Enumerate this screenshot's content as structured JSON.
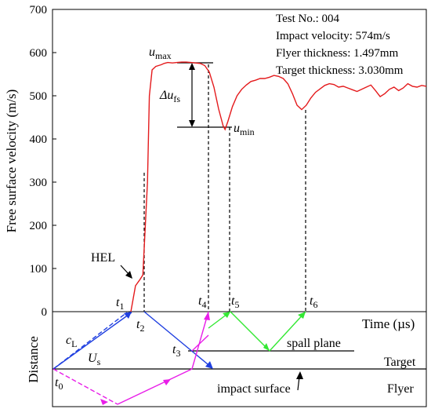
{
  "chart_data": {
    "type": "line",
    "ylabel": "Free surface velocity (m/s)",
    "xlabel": "Time (µs)",
    "ylim": [
      0,
      700
    ],
    "yticks": [
      0,
      100,
      200,
      300,
      400,
      500,
      600,
      700
    ],
    "grid": false,
    "info": [
      "Test No.: 004",
      "Impact velocity: 574m/s",
      "Flyer thickness: 1.497mm",
      "Target thickness: 3.030mm"
    ],
    "series": [
      {
        "color": "#e41a1c",
        "x": [
          0.0,
          0.05,
          0.1,
          0.13,
          0.18,
          0.2,
          0.23,
          0.27,
          0.3,
          0.33,
          0.36,
          0.4,
          0.45,
          0.5,
          0.55,
          0.6,
          0.65,
          0.7,
          0.75,
          0.8,
          0.85,
          0.9,
          0.95,
          1.0,
          1.02,
          1.05,
          1.1,
          1.15,
          1.2,
          1.25,
          1.3,
          1.35,
          1.4,
          1.45,
          1.5,
          1.55,
          1.6,
          1.65,
          1.7,
          1.75,
          1.8,
          1.85,
          1.9,
          1.95,
          2.0,
          2.05,
          2.1,
          2.15,
          2.2,
          2.25,
          2.3,
          2.35,
          2.4,
          2.45,
          2.5,
          2.55,
          2.6,
          2.65,
          2.7,
          2.75,
          2.8,
          2.85,
          2.9,
          2.95,
          3.0,
          3.05,
          3.1,
          3.15,
          3.2
        ],
        "y": [
          0,
          60,
          75,
          85,
          300,
          500,
          560,
          568,
          570,
          572,
          575,
          577,
          576,
          577,
          578,
          578,
          577,
          576,
          575,
          570,
          555,
          520,
          470,
          430,
          422,
          440,
          475,
          500,
          515,
          525,
          533,
          536,
          540,
          540,
          543,
          547,
          545,
          540,
          528,
          505,
          478,
          468,
          478,
          495,
          508,
          516,
          524,
          528,
          526,
          520,
          522,
          518,
          514,
          510,
          515,
          520,
          525,
          512,
          498,
          505,
          515,
          520,
          512,
          518,
          528,
          522,
          520,
          524,
          522
        ]
      }
    ],
    "annotations": {
      "umax": {
        "main": "u",
        "sub": "max",
        "value": 575
      },
      "umin": {
        "main": "u",
        "sub": "min",
        "value": 422
      },
      "dufs": {
        "main": "Δu",
        "sub": "fs"
      },
      "hel": "HEL",
      "times": [
        {
          "main": "t",
          "sub": "1",
          "x": 0.0
        },
        {
          "main": "t",
          "sub": "2",
          "x": 0.11
        },
        {
          "main": "t",
          "sub": "4",
          "x": 0.6
        },
        {
          "main": "t",
          "sub": "5",
          "x": 1.0
        },
        {
          "main": "t",
          "sub": "6",
          "x": 1.85
        }
      ]
    },
    "wave_diagram": {
      "ylabel": "Distance",
      "labels": {
        "t0": {
          "main": "t",
          "sub": "0"
        },
        "t3": {
          "main": "t",
          "sub": "3"
        },
        "cL": {
          "main": "c",
          "sub": "L"
        },
        "Us": {
          "main": "U",
          "sub": "s"
        },
        "spall_plane": "spall plane",
        "target": "Target",
        "impact_surface": "impact surface",
        "flyer": "Flyer"
      }
    }
  }
}
